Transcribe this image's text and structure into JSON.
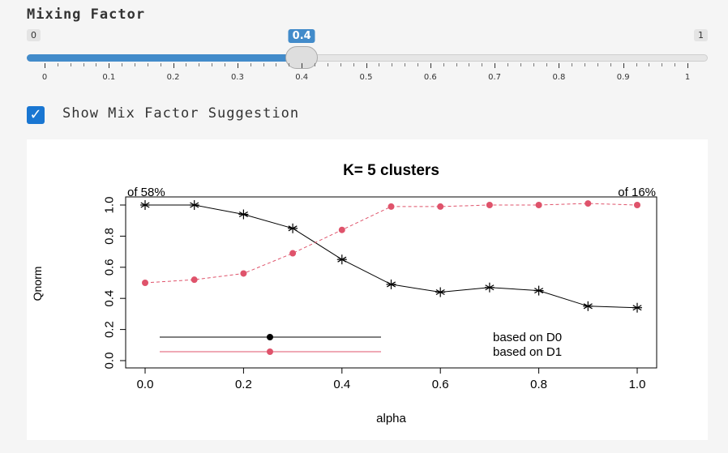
{
  "slider": {
    "label": "Mixing Factor",
    "min_label": "0",
    "max_label": "1",
    "value": 0.4,
    "value_label": "0.4",
    "ticks": [
      "0",
      "0.1",
      "0.2",
      "0.3",
      "0.4",
      "0.5",
      "0.6",
      "0.7",
      "0.8",
      "0.9",
      "1"
    ],
    "accent_color": "#428bca"
  },
  "checkbox": {
    "label": "Show Mix Factor Suggestion",
    "checked": true,
    "color": "#1976d2"
  },
  "chart_data": {
    "type": "line",
    "title": "K= 5 clusters",
    "xlabel": "alpha",
    "ylabel": "Qnorm",
    "x": [
      0,
      0.1,
      0.2,
      0.3,
      0.4,
      0.5,
      0.6,
      0.7,
      0.8,
      0.9,
      1.0
    ],
    "xlim": [
      0,
      1
    ],
    "ylim": [
      0,
      1
    ],
    "xticks": [
      "0.0",
      "0.2",
      "0.4",
      "0.6",
      "0.8",
      "1.0"
    ],
    "yticks": [
      "0.0",
      "0.2",
      "0.4",
      "0.6",
      "0.8",
      "1.0"
    ],
    "top_left_annotation": "of 58%",
    "top_right_annotation": "of 16%",
    "series": [
      {
        "name": "based on D0",
        "color": "#000000",
        "line": "solid",
        "marker": "star",
        "values": [
          1.0,
          1.0,
          0.94,
          0.85,
          0.65,
          0.49,
          0.44,
          0.47,
          0.45,
          0.35,
          0.34
        ]
      },
      {
        "name": "based on D1",
        "color": "#df536b",
        "line": "dashed",
        "marker": "dot",
        "values": [
          0.5,
          0.52,
          0.56,
          0.69,
          0.84,
          0.99,
          0.99,
          1.0,
          1.0,
          1.01,
          1.0
        ]
      }
    ],
    "legend": {
      "position": "bottom",
      "entries": [
        "based on D0",
        "based on D1"
      ]
    }
  }
}
